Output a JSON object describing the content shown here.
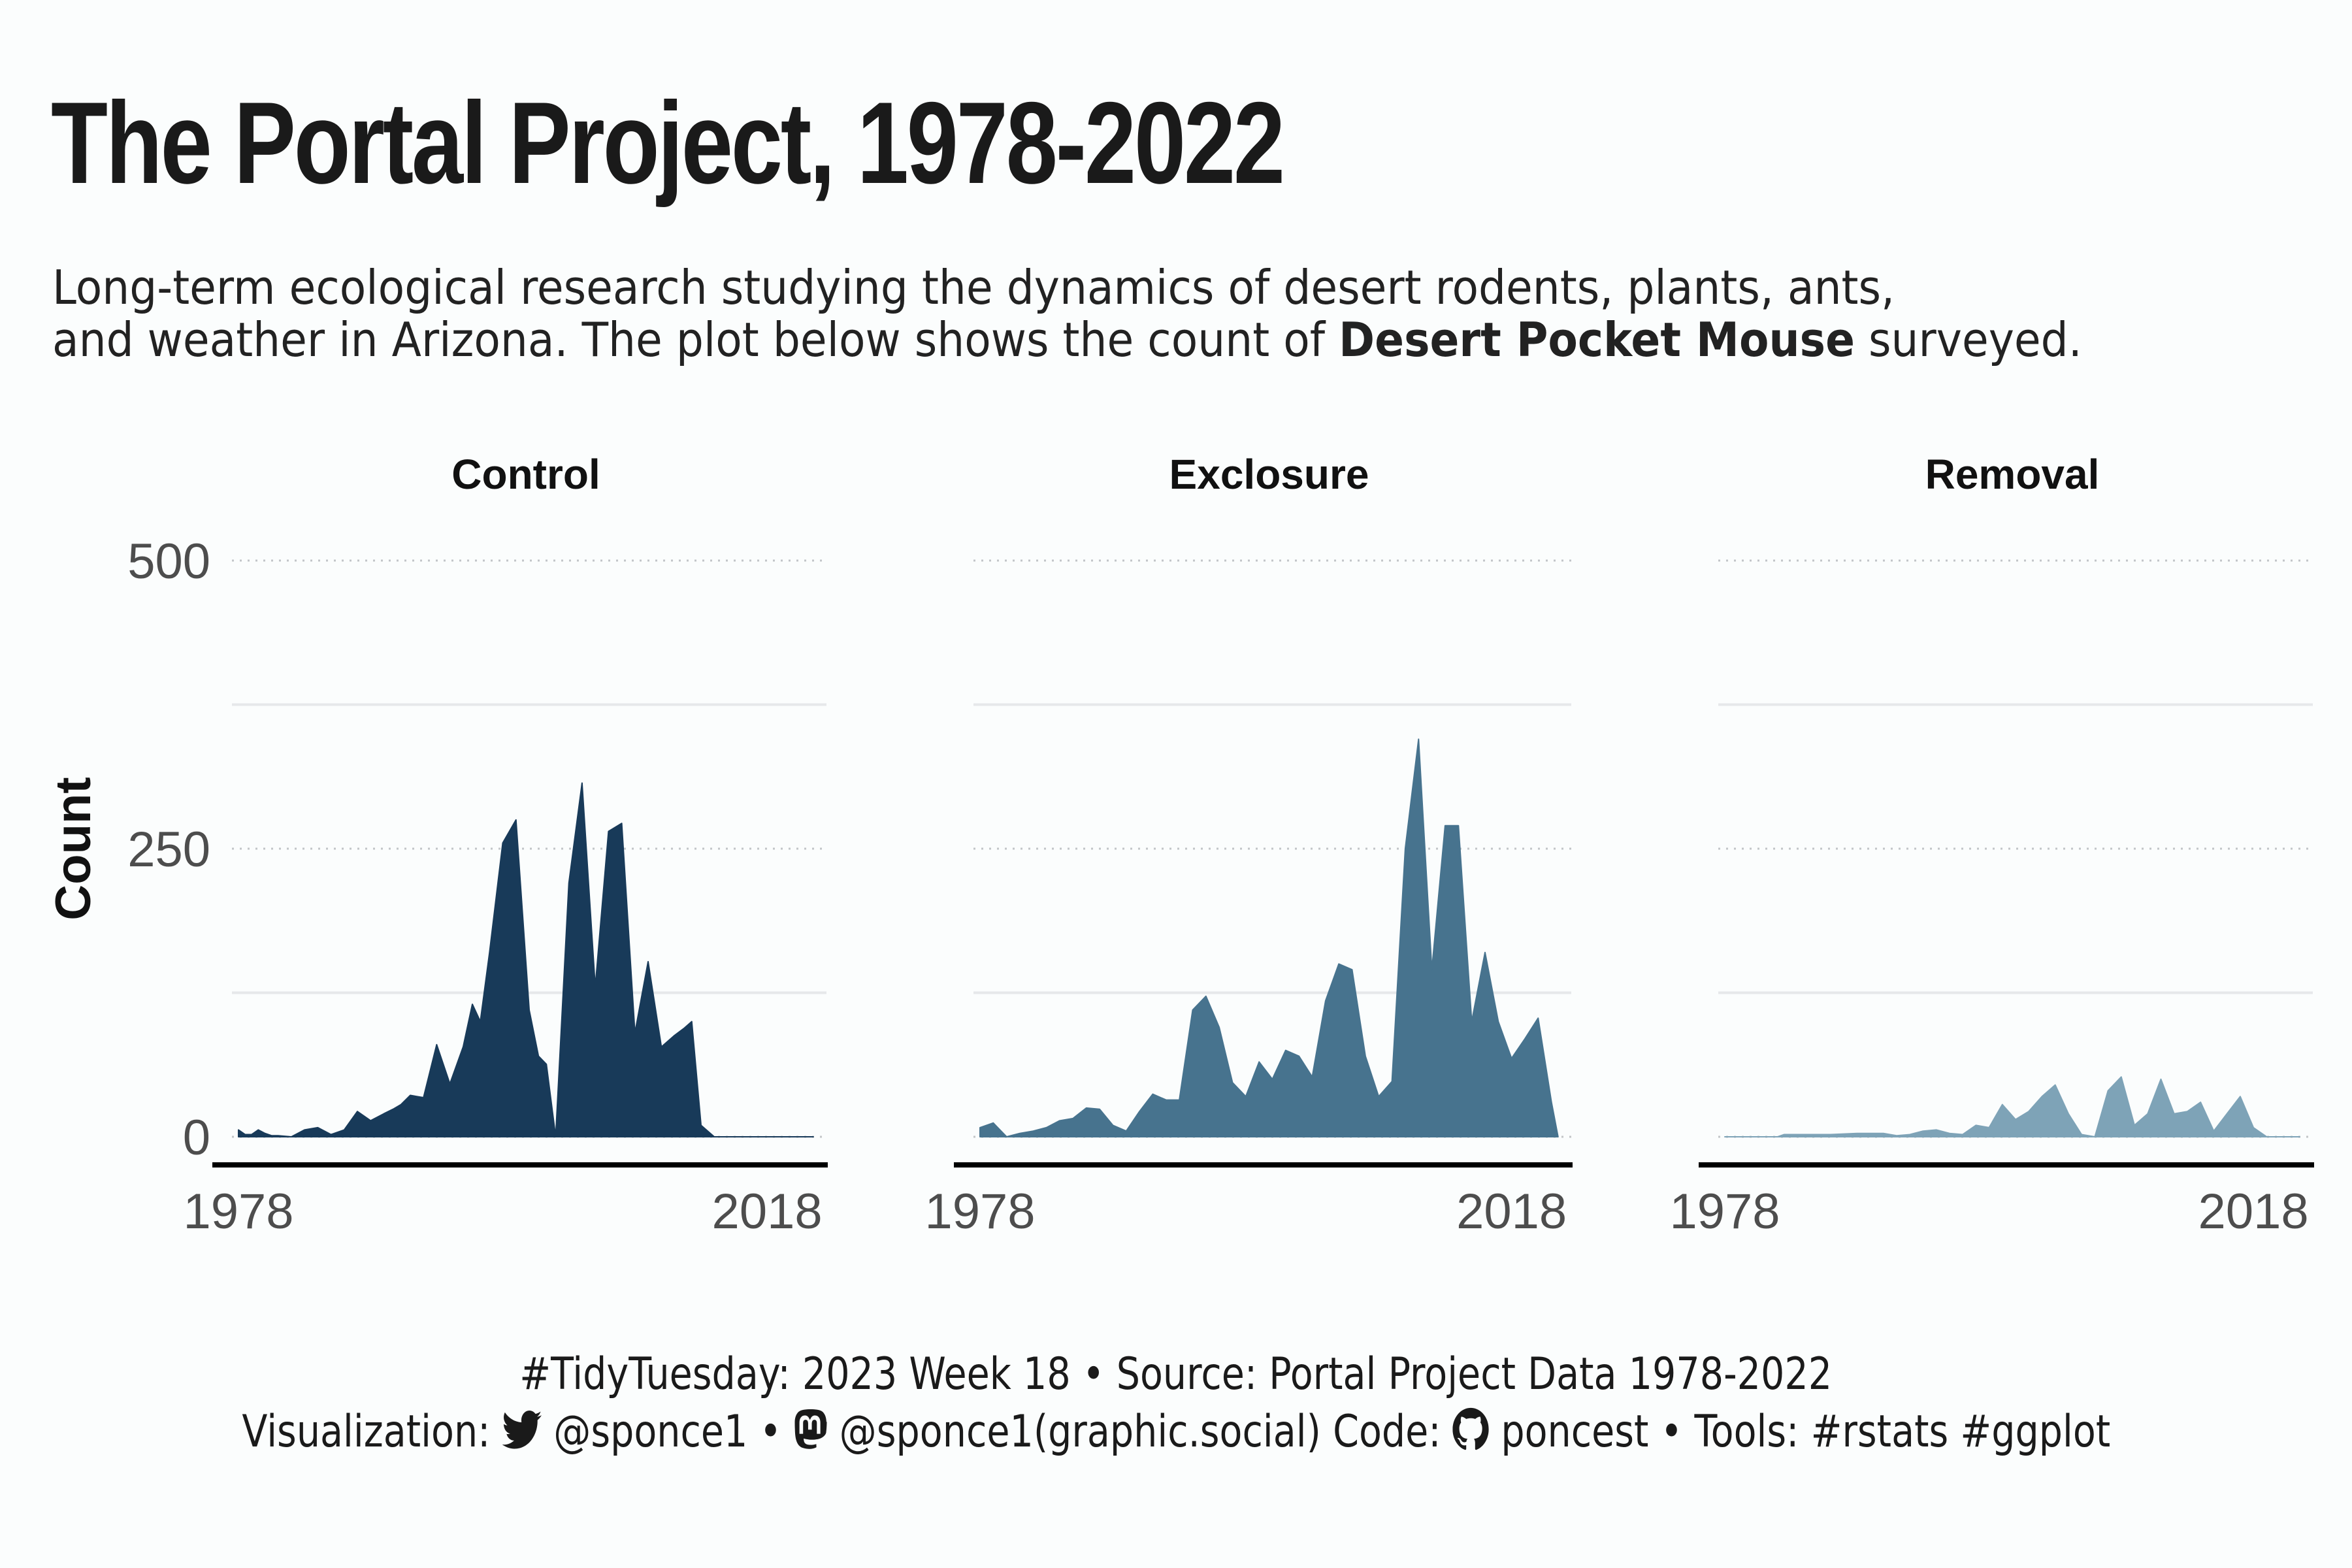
{
  "title": "The Portal Project, 1978-2022",
  "subtitle": {
    "line1": "Long-term ecological research studying the dynamics of desert rodents, plants, ants,",
    "line2_pre": "and weather in Arizona. The plot below shows the count of ",
    "line2_bold": "Desert Pocket Mouse",
    "line2_post": " surveyed."
  },
  "caption": {
    "line1": "#TidyTuesday: 2023 Week 18 • Source: Portal Project Data 1978-2022",
    "viz_label": "Visualization:",
    "twitter_handle": "@sponce1",
    "sep1": "•",
    "mastodon_handle": "@sponce1(graphic.social)",
    "code_label": "Code:",
    "github_handle": "poncest",
    "sep2": "•",
    "tools": "Tools: #rstats #ggplot"
  },
  "icons": [
    "twitter-icon",
    "mastodon-icon",
    "github-icon"
  ],
  "chart_data": {
    "type": "area",
    "ylabel": "Count",
    "xlabel": "",
    "ylim": [
      0,
      500
    ],
    "xlim": [
      1978,
      2022
    ],
    "xticks": [
      1978,
      2018
    ],
    "yticks": [
      0,
      250,
      500
    ],
    "grid": "major dotted, minor solid",
    "series": [
      {
        "name": "Control",
        "color": "#183a59",
        "x": [
          1978.0,
          1978.5,
          1979.0,
          1979.5,
          1980.0,
          1980.5,
          1981.0,
          1982.0,
          1983.0,
          1984.0,
          1985.0,
          1986.0,
          1987.0,
          1988.0,
          1989.0,
          1989.7,
          1990.3,
          1991.0,
          1992.0,
          1993.0,
          1994.0,
          1995.0,
          1995.7,
          1996.3,
          1997.0,
          1998.0,
          1999.0,
          2000.0,
          2000.7,
          2001.3,
          2002.0,
          2003.0,
          2004.0,
          2005.0,
          2006.0,
          2007.0,
          2008.0,
          2009.0,
          2010.0,
          2011.0,
          2011.7,
          2012.3,
          2013.0,
          2014.0,
          2015.0,
          2016.0,
          2016.8,
          2017.5,
          2019.0,
          2020.0,
          2021.0,
          2021.5
        ],
        "y": [
          6,
          2,
          2,
          6,
          3,
          1,
          1,
          0,
          6,
          8,
          2,
          6,
          22,
          14,
          20,
          24,
          28,
          36,
          34,
          80,
          46,
          78,
          115,
          100,
          160,
          255,
          275,
          110,
          70,
          63,
          0,
          220,
          307,
          130,
          265,
          272,
          90,
          152,
          78,
          88,
          94,
          100,
          10,
          0,
          0,
          0,
          0,
          0,
          0,
          0,
          0,
          0
        ]
      },
      {
        "name": "Exclosure",
        "color": "#47738e",
        "x": [
          1978.0,
          1979.0,
          1980.0,
          1981.0,
          1982.0,
          1983.0,
          1984.0,
          1985.0,
          1986.0,
          1987.0,
          1988.0,
          1989.0,
          1990.0,
          1991.0,
          1992.0,
          1993.0,
          1994.0,
          1995.0,
          1996.0,
          1997.0,
          1998.0,
          1999.0,
          2000.0,
          2001.0,
          2002.0,
          2003.0,
          2004.0,
          2005.0,
          2006.0,
          2007.0,
          2008.0,
          2009.0,
          2010.0,
          2011.0,
          2012.0,
          2013.0,
          2014.0,
          2015.0,
          2016.0,
          2017.0,
          2018.0,
          2019.0,
          2020.0,
          2021.0,
          2021.5
        ],
        "y": [
          8,
          12,
          0,
          3,
          5,
          8,
          14,
          16,
          25,
          24,
          10,
          5,
          22,
          37,
          32,
          32,
          110,
          122,
          95,
          47,
          35,
          65,
          50,
          75,
          70,
          52,
          118,
          150,
          145,
          70,
          35,
          48,
          250,
          345,
          145,
          270,
          270,
          100,
          160,
          100,
          68,
          85,
          103,
          30,
          0
        ]
      },
      {
        "name": "Removal",
        "color": "#7ea3b7",
        "x": [
          1978.0,
          1982.0,
          1982.5,
          1984.0,
          1986.0,
          1988.0,
          1990.0,
          1991.0,
          1992.0,
          1993.0,
          1994.0,
          1995.0,
          1996.0,
          1997.0,
          1998.0,
          1999.0,
          2000.0,
          2001.0,
          2002.0,
          2003.0,
          2004.0,
          2005.0,
          2006.0,
          2007.0,
          2008.0,
          2009.0,
          2010.0,
          2011.0,
          2012.0,
          2013.0,
          2014.0,
          2015.0,
          2016.0,
          2017.0,
          2018.0,
          2019.0,
          2020.0,
          2021.0,
          2021.5
        ],
        "y": [
          0,
          0,
          2,
          2,
          2,
          3,
          3,
          1,
          2,
          5,
          6,
          3,
          2,
          10,
          8,
          28,
          15,
          22,
          35,
          45,
          20,
          2,
          0,
          40,
          52,
          10,
          20,
          50,
          20,
          22,
          30,
          5,
          20,
          35,
          8,
          0,
          0,
          0,
          0
        ]
      }
    ]
  }
}
